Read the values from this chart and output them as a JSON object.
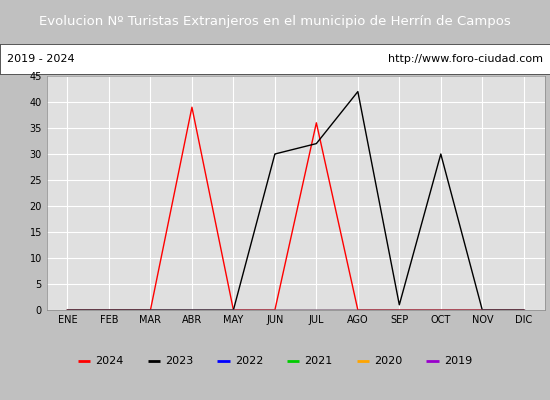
{
  "title": "Evolucion Nº Turistas Extranjeros en el municipio de Herrín de Campos",
  "subtitle_left": "2019 - 2024",
  "subtitle_right": "http://www.foro-ciudad.com",
  "months": [
    "ENE",
    "FEB",
    "MAR",
    "ABR",
    "MAY",
    "JUN",
    "JUL",
    "AGO",
    "SEP",
    "OCT",
    "NOV",
    "DIC"
  ],
  "series": {
    "2024": {
      "color": "#ff0000",
      "values": [
        0,
        0,
        0,
        39,
        0,
        0,
        36,
        0,
        0,
        0,
        0,
        0
      ]
    },
    "2023": {
      "color": "#000000",
      "values": [
        0,
        0,
        0,
        0,
        0,
        30,
        32,
        42,
        1,
        30,
        0,
        0
      ]
    },
    "2022": {
      "color": "#0000ff",
      "values": [
        0,
        0,
        0,
        0,
        0,
        0,
        0,
        0,
        0,
        0,
        0,
        0
      ]
    },
    "2021": {
      "color": "#00cc00",
      "values": [
        0,
        0,
        0,
        0,
        0,
        0,
        0,
        0,
        0,
        0,
        0,
        0
      ]
    },
    "2020": {
      "color": "#ffa500",
      "values": [
        0,
        0,
        0,
        0,
        0,
        0,
        0,
        0,
        0,
        0,
        0,
        0
      ]
    },
    "2019": {
      "color": "#9900cc",
      "values": [
        0,
        0,
        0,
        0,
        0,
        0,
        0,
        0,
        0,
        0,
        0,
        0
      ]
    }
  },
  "ylim": [
    0,
    45
  ],
  "yticks": [
    0,
    5,
    10,
    15,
    20,
    25,
    30,
    35,
    40,
    45
  ],
  "title_bg_color": "#4d79c7",
  "title_text_color": "#ffffff",
  "subtitle_bg_color": "#ffffff",
  "plot_bg_color": "#e0e0e0",
  "grid_color": "#ffffff",
  "legend_order": [
    "2024",
    "2023",
    "2022",
    "2021",
    "2020",
    "2019"
  ],
  "fig_width": 5.5,
  "fig_height": 4.0,
  "dpi": 100
}
